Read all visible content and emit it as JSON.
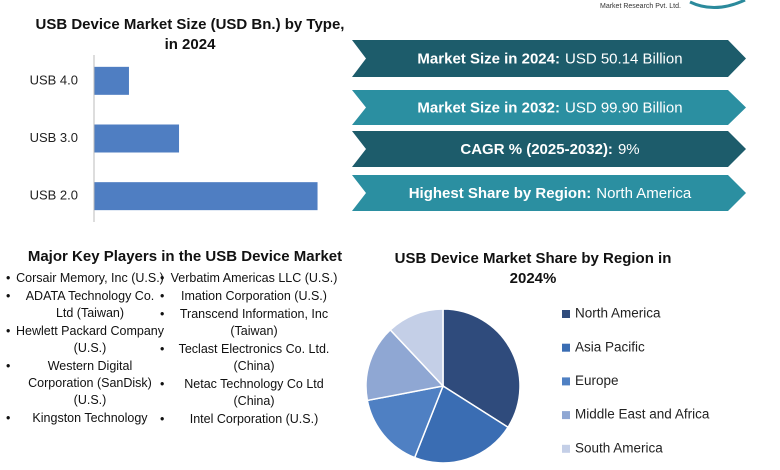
{
  "header": {
    "brand": "Market Research Pvt. Ltd."
  },
  "chart_data": [
    {
      "type": "hbar",
      "title": "USB Device Market Size (USD Bn.) by Type, in 2024",
      "categories": [
        "USB 4.0",
        "USB 3.0",
        "USB 2.0"
      ],
      "values": [
        5.1,
        12.4,
        32.6
      ],
      "color": "#4f7ec2",
      "xlim": [
        0,
        35
      ]
    },
    {
      "type": "pie",
      "title": "USB Device Market Share by Region in 2024%",
      "categories": [
        "North America",
        "Asia Pacific",
        "Europe",
        "Middle East and Africa",
        "South America"
      ],
      "values": [
        34,
        22,
        16,
        16,
        12
      ],
      "colors": [
        "#2f4b7c",
        "#3a6db3",
        "#4f80c3",
        "#8fa7d3",
        "#c4cfe7"
      ],
      "legend": "right"
    }
  ],
  "highlights": [
    {
      "label": "Market Size in 2024:",
      "value": "USD  50.14 Billion"
    },
    {
      "label": "Market Size in 2032:",
      "value": "USD 99.90 Billion"
    },
    {
      "label": "CAGR % (2025-2032):",
      "value": "9%"
    },
    {
      "label": "Highest Share by Region:",
      "value": "North America"
    }
  ],
  "key_players": {
    "title": "Major Key Players in the USB Device Market",
    "columns": [
      [
        "Corsair Memory, Inc (U.S.)",
        "ADATA Technology Co. Ltd (Taiwan)",
        "Hewlett Packard Company (U.S.)",
        "Western Digital Corporation (SanDisk) (U.S.)",
        "Kingston Technology"
      ],
      [
        "Verbatim Americas LLC (U.S.)",
        "Imation Corporation (U.S.)",
        "Transcend Information, Inc (Taiwan)",
        "Teclast Electronics Co. Ltd. (China)",
        "Netac Technology Co Ltd (China)",
        "Intel Corporation (U.S.)"
      ]
    ]
  }
}
